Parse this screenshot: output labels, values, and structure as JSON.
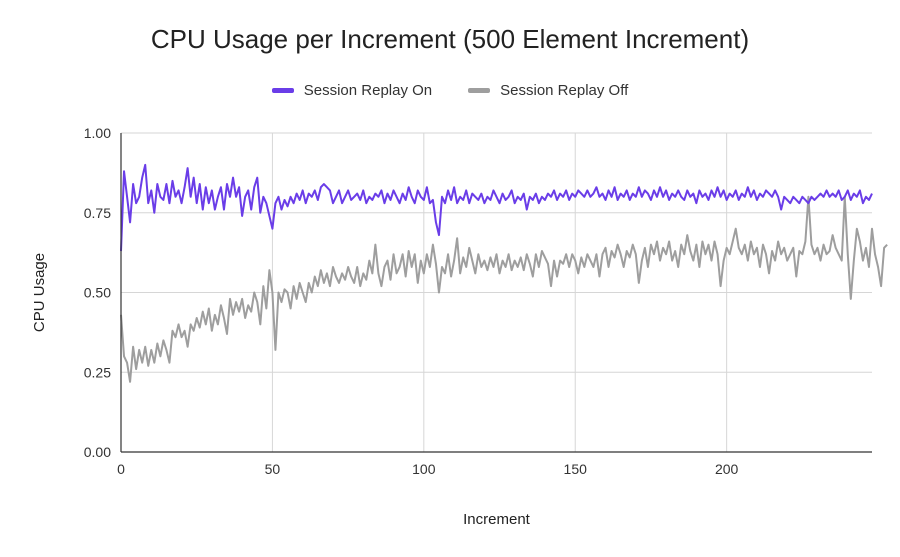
{
  "chart_data": {
    "type": "line",
    "title": "CPU Usage per Increment (500 Element Increment)",
    "xlabel": "Increment",
    "ylabel": "CPU Usage",
    "xlim": [
      0,
      248
    ],
    "ylim": [
      0,
      1
    ],
    "x_ticks": [
      "0",
      "50",
      "100",
      "150",
      "200"
    ],
    "y_ticks": [
      "0.00",
      "0.25",
      "0.50",
      "0.75",
      "1.00"
    ],
    "grid": true,
    "legend_position": "top",
    "series": [
      {
        "name": "Session Replay On",
        "color": "#6a3de8",
        "values": [
          0.63,
          0.88,
          0.8,
          0.72,
          0.84,
          0.78,
          0.8,
          0.86,
          0.9,
          0.78,
          0.82,
          0.75,
          0.84,
          0.8,
          0.79,
          0.84,
          0.78,
          0.85,
          0.8,
          0.82,
          0.78,
          0.83,
          0.89,
          0.8,
          0.86,
          0.78,
          0.84,
          0.76,
          0.83,
          0.78,
          0.82,
          0.76,
          0.8,
          0.83,
          0.76,
          0.84,
          0.8,
          0.86,
          0.8,
          0.83,
          0.74,
          0.8,
          0.82,
          0.76,
          0.83,
          0.86,
          0.75,
          0.8,
          0.78,
          0.74,
          0.7,
          0.78,
          0.8,
          0.76,
          0.79,
          0.77,
          0.8,
          0.78,
          0.81,
          0.79,
          0.82,
          0.78,
          0.81,
          0.8,
          0.82,
          0.79,
          0.83,
          0.84,
          0.83,
          0.82,
          0.78,
          0.8,
          0.82,
          0.78,
          0.8,
          0.82,
          0.79,
          0.8,
          0.81,
          0.79,
          0.82,
          0.78,
          0.8,
          0.79,
          0.81,
          0.8,
          0.82,
          0.78,
          0.81,
          0.79,
          0.82,
          0.8,
          0.78,
          0.81,
          0.79,
          0.83,
          0.8,
          0.78,
          0.82,
          0.8,
          0.79,
          0.83,
          0.78,
          0.79,
          0.72,
          0.68,
          0.8,
          0.78,
          0.82,
          0.79,
          0.83,
          0.78,
          0.8,
          0.79,
          0.82,
          0.78,
          0.81,
          0.8,
          0.79,
          0.81,
          0.78,
          0.8,
          0.79,
          0.82,
          0.8,
          0.78,
          0.81,
          0.79,
          0.8,
          0.82,
          0.78,
          0.8,
          0.79,
          0.81,
          0.76,
          0.8,
          0.79,
          0.81,
          0.78,
          0.8,
          0.79,
          0.81,
          0.8,
          0.82,
          0.79,
          0.81,
          0.8,
          0.82,
          0.79,
          0.81,
          0.8,
          0.82,
          0.81,
          0.8,
          0.82,
          0.8,
          0.81,
          0.83,
          0.8,
          0.81,
          0.79,
          0.82,
          0.8,
          0.83,
          0.79,
          0.81,
          0.8,
          0.82,
          0.79,
          0.81,
          0.8,
          0.83,
          0.8,
          0.82,
          0.81,
          0.79,
          0.82,
          0.8,
          0.83,
          0.8,
          0.82,
          0.79,
          0.81,
          0.8,
          0.82,
          0.8,
          0.79,
          0.82,
          0.8,
          0.81,
          0.78,
          0.82,
          0.8,
          0.81,
          0.79,
          0.82,
          0.8,
          0.83,
          0.8,
          0.82,
          0.79,
          0.81,
          0.8,
          0.82,
          0.79,
          0.81,
          0.8,
          0.83,
          0.8,
          0.82,
          0.79,
          0.81,
          0.8,
          0.82,
          0.81,
          0.8,
          0.82,
          0.8,
          0.76,
          0.8,
          0.79,
          0.78,
          0.8,
          0.79,
          0.78,
          0.8,
          0.79,
          0.78,
          0.8,
          0.79,
          0.8,
          0.81,
          0.8,
          0.82,
          0.8,
          0.81,
          0.8,
          0.82,
          0.79,
          0.8,
          0.82,
          0.79,
          0.81,
          0.8,
          0.82,
          0.78,
          0.8,
          0.79,
          0.81
        ]
      },
      {
        "name": "Session Replay Off",
        "color": "#9e9e9e",
        "values": [
          0.43,
          0.3,
          0.28,
          0.22,
          0.33,
          0.26,
          0.32,
          0.28,
          0.33,
          0.27,
          0.32,
          0.28,
          0.34,
          0.3,
          0.35,
          0.32,
          0.28,
          0.38,
          0.36,
          0.4,
          0.36,
          0.38,
          0.33,
          0.4,
          0.38,
          0.42,
          0.39,
          0.44,
          0.4,
          0.45,
          0.38,
          0.43,
          0.4,
          0.46,
          0.42,
          0.37,
          0.48,
          0.43,
          0.47,
          0.44,
          0.48,
          0.42,
          0.46,
          0.44,
          0.5,
          0.47,
          0.4,
          0.52,
          0.45,
          0.57,
          0.5,
          0.32,
          0.5,
          0.47,
          0.51,
          0.5,
          0.45,
          0.52,
          0.48,
          0.53,
          0.5,
          0.47,
          0.53,
          0.5,
          0.55,
          0.52,
          0.57,
          0.53,
          0.56,
          0.52,
          0.58,
          0.55,
          0.53,
          0.56,
          0.54,
          0.58,
          0.55,
          0.53,
          0.58,
          0.52,
          0.56,
          0.54,
          0.6,
          0.56,
          0.65,
          0.56,
          0.52,
          0.58,
          0.6,
          0.54,
          0.62,
          0.56,
          0.58,
          0.62,
          0.55,
          0.63,
          0.58,
          0.62,
          0.53,
          0.6,
          0.56,
          0.62,
          0.58,
          0.65,
          0.59,
          0.5,
          0.58,
          0.56,
          0.62,
          0.55,
          0.6,
          0.67,
          0.56,
          0.61,
          0.58,
          0.64,
          0.6,
          0.56,
          0.62,
          0.58,
          0.6,
          0.57,
          0.61,
          0.58,
          0.62,
          0.56,
          0.6,
          0.58,
          0.62,
          0.57,
          0.6,
          0.58,
          0.61,
          0.57,
          0.62,
          0.59,
          0.55,
          0.62,
          0.58,
          0.63,
          0.61,
          0.59,
          0.52,
          0.6,
          0.55,
          0.6,
          0.59,
          0.62,
          0.58,
          0.62,
          0.6,
          0.56,
          0.61,
          0.58,
          0.62,
          0.6,
          0.58,
          0.62,
          0.55,
          0.62,
          0.64,
          0.58,
          0.63,
          0.61,
          0.65,
          0.62,
          0.58,
          0.63,
          0.61,
          0.65,
          0.62,
          0.53,
          0.6,
          0.64,
          0.58,
          0.65,
          0.62,
          0.66,
          0.6,
          0.64,
          0.62,
          0.66,
          0.6,
          0.63,
          0.58,
          0.65,
          0.62,
          0.68,
          0.63,
          0.6,
          0.65,
          0.58,
          0.66,
          0.62,
          0.65,
          0.6,
          0.66,
          0.62,
          0.52,
          0.6,
          0.64,
          0.62,
          0.66,
          0.7,
          0.64,
          0.62,
          0.65,
          0.6,
          0.66,
          0.62,
          0.64,
          0.58,
          0.65,
          0.62,
          0.56,
          0.63,
          0.6,
          0.66,
          0.62,
          0.64,
          0.6,
          0.62,
          0.64,
          0.55,
          0.63,
          0.62,
          0.66,
          0.8,
          0.65,
          0.62,
          0.64,
          0.6,
          0.65,
          0.62,
          0.63,
          0.68,
          0.64,
          0.62,
          0.6,
          0.8,
          0.62,
          0.48,
          0.6,
          0.7,
          0.66,
          0.6,
          0.64,
          0.58,
          0.7,
          0.62,
          0.58,
          0.52,
          0.64,
          0.65
        ]
      }
    ]
  }
}
